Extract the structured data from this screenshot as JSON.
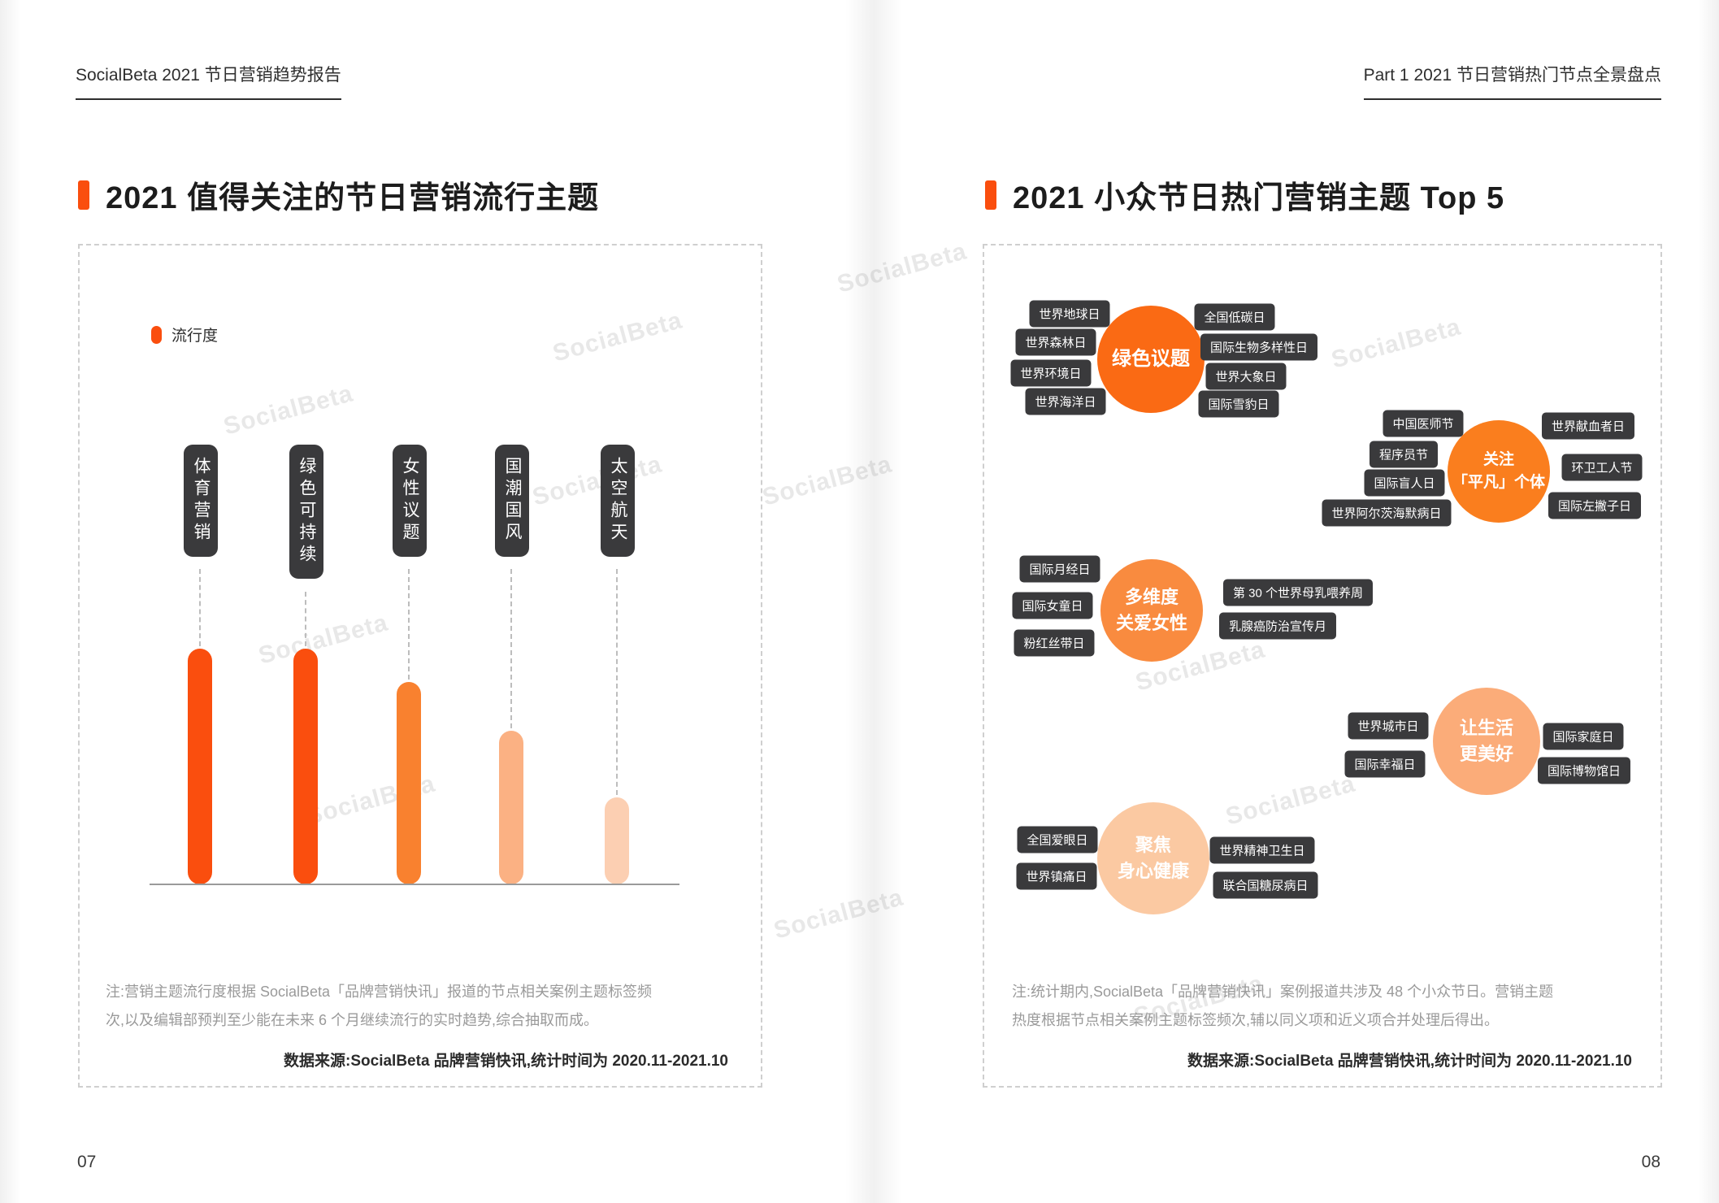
{
  "meta": {
    "watermark_text": "SocialBeta",
    "accent_color": "#FA4E0E",
    "dark_pill_color": "#3A3A3C"
  },
  "left_page": {
    "header": "SocialBeta 2021 节日营销趋势报告",
    "title": "2021 值得关注的节日营销流行主题",
    "page_number": "07",
    "note_lines": [
      "注:营销主题流行度根据 SocialBeta「品牌营销快讯」报道的节点相关案例主题标签频",
      "次,以及编辑部预判至少能在未来 6 个月继续流行的实时趋势,综合抽取而成。"
    ],
    "source": "数据来源:SocialBeta 品牌营销快讯,统计时间为 2020.11-2021.10"
  },
  "right_page": {
    "header": "Part 1 2021 节日营销热门节点全景盘点",
    "title": "2021 小众节日热门营销主题 Top 5",
    "page_number": "08",
    "note_lines": [
      "注:统计期内,SocialBeta「品牌营销快讯」案例报道共涉及 48 个小众节日。营销主题",
      "热度根据节点相关案例主题标签频次,辅以同义项和近义项合并处理后得出。"
    ],
    "source": "数据来源:SocialBeta 品牌营销快讯,统计时间为 2020.11-2021.10"
  },
  "chart_data": [
    {
      "type": "bar",
      "title": "2021 值得关注的节日营销流行主题",
      "legend": [
        "流行度"
      ],
      "legend_position": "top-left",
      "categories": [
        "体育营销",
        "绿色可持续",
        "女性议题",
        "国潮国风",
        "太空航天"
      ],
      "values": [
        100,
        100,
        86,
        65,
        37
      ],
      "colors": [
        "#FA4E0E",
        "#FA4E0E",
        "#F9812F",
        "#FBB183",
        "#FCCFB2"
      ],
      "xlabel": "",
      "ylabel": "流行度",
      "ylim": [
        0,
        100
      ],
      "grid": false
    },
    {
      "type": "bubble",
      "title": "2021 小众节日热门营销主题 Top 5",
      "clusters": [
        {
          "rank": 1,
          "label": "绿色议题",
          "label_lines": [
            "绿色议题"
          ],
          "color": "#FA6A14",
          "tags_left": [
            "世界地球日",
            "世界森林日",
            "世界环境日",
            "世界海洋日"
          ],
          "tags_right": [
            "全国低碳日",
            "国际生物多样性日",
            "世界大象日",
            "国际雪豹日"
          ]
        },
        {
          "rank": 2,
          "label": "关注「平凡」个体",
          "label_lines": [
            "关注",
            "「平凡」个体"
          ],
          "color": "#FA7E1E",
          "tags_left": [
            "中国医师节",
            "程序员节",
            "国际盲人日",
            "世界阿尔茨海默病日"
          ],
          "tags_right": [
            "世界献血者日",
            "环卫工人节",
            "国际左撇子日"
          ]
        },
        {
          "rank": 3,
          "label": "多维度关爱女性",
          "label_lines": [
            "多维度",
            "关爱女性"
          ],
          "color": "#F98B3F",
          "tags_left": [
            "国际月经日",
            "国际女童日",
            "粉红丝带日"
          ],
          "tags_right": [
            "第 30 个世界母乳喂养周",
            "乳腺癌防治宣传月"
          ]
        },
        {
          "rank": 4,
          "label": "让生活更美好",
          "label_lines": [
            "让生活",
            "更美好"
          ],
          "color": "#FBAC79",
          "tags_left": [
            "世界城市日",
            "国际幸福日"
          ],
          "tags_right": [
            "国际家庭日",
            "国际博物馆日"
          ]
        },
        {
          "rank": 5,
          "label": "聚焦身心健康",
          "label_lines": [
            "聚焦",
            "身心健康"
          ],
          "color": "#FBC9A2",
          "tags_left": [
            "全国爱眼日",
            "世界镇痛日"
          ],
          "tags_right": [
            "世界精神卫生日",
            "联合国糖尿病日"
          ]
        }
      ]
    }
  ]
}
